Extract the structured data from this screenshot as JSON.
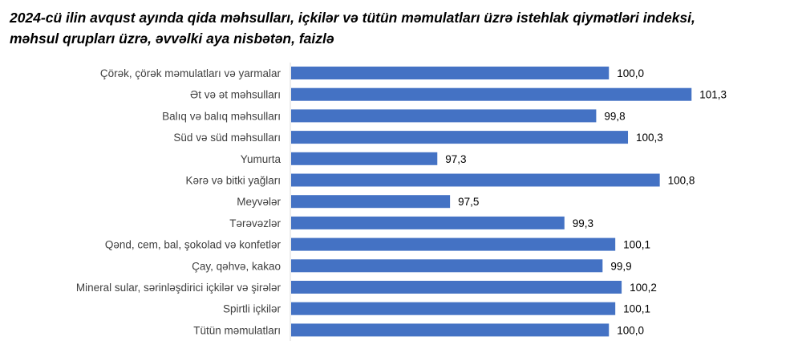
{
  "chart_data": {
    "type": "bar",
    "orientation": "horizontal",
    "title_line1": "2024-cü ilin avqust ayında qida məhsulları, içkilər və tütün məmulatları üzrə istehlak qiymətləri indeksi,",
    "title_line2": "məhsul qrupları üzrə, əvvəlki aya nisbətən, faizlə",
    "categories": [
      "Çörək, çörək məmulatları və yarmalar",
      "Ət və ət məhsulları",
      "Balıq və balıq məhsulları",
      "Süd və süd məhsulları",
      "Yumurta",
      "Kərə və bitki yağları",
      "Meyvələr",
      "Tərəvəzlər",
      "Qənd, cem, bal, şokolad və konfetlər",
      "Çay, qəhvə, kakao",
      "Mineral sular, sərinləşdirici içkilər və şirələr",
      "Spirtli içkilər",
      "Tütün məmulatları"
    ],
    "values": [
      100.0,
      101.3,
      99.8,
      100.3,
      97.3,
      100.8,
      97.5,
      99.3,
      100.1,
      99.9,
      100.2,
      100.1,
      100.0
    ],
    "value_labels": [
      "100,0",
      "101,3",
      "99,8",
      "100,3",
      "97,3",
      "100,8",
      "97,5",
      "99,3",
      "100,1",
      "99,9",
      "100,2",
      "100,1",
      "100,0"
    ],
    "xlim": [
      95,
      102
    ],
    "grid": false,
    "legend": "none",
    "bar_color": "#4472C4",
    "xlabel": "",
    "ylabel": ""
  }
}
